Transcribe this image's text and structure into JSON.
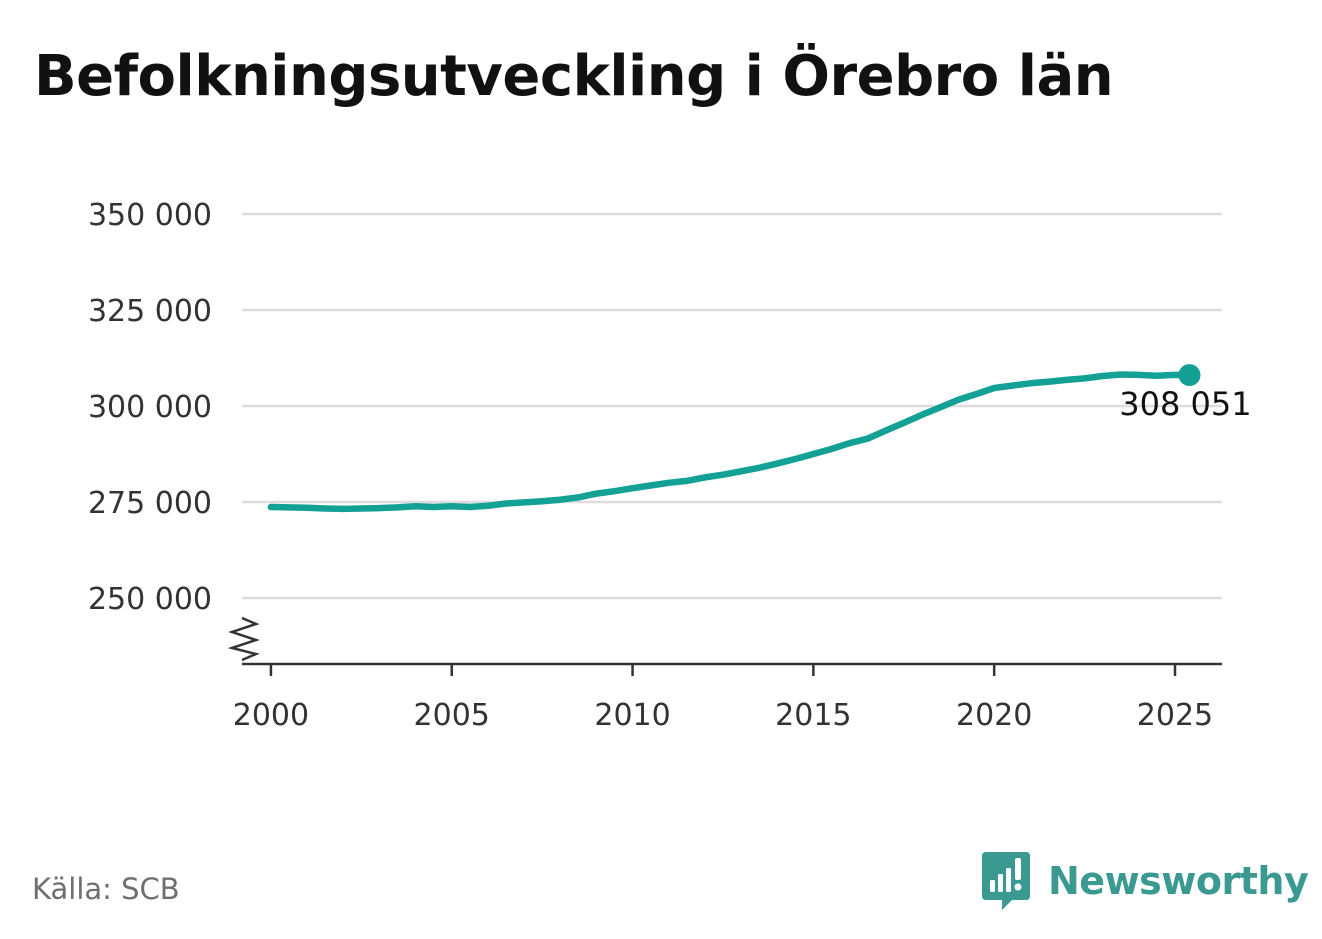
{
  "title": "Befolkningsutveckling i Örebro län",
  "source": "Källa: SCB",
  "brand": {
    "name": "Newsworthy",
    "icon": "newsworthy-logo-icon",
    "color": "#3a9a92"
  },
  "colors": {
    "line": "#14a195",
    "grid": "#dddddd",
    "axis": "#333333",
    "text": "#333333"
  },
  "chart_data": {
    "type": "line",
    "title": "Befolkningsutveckling i Örebro län",
    "xlabel": "",
    "ylabel": "",
    "xlim": [
      1999.2,
      2026.3
    ],
    "ylim": [
      233000,
      350000
    ],
    "y_ticks": [
      250000,
      275000,
      300000,
      325000,
      350000
    ],
    "y_tick_labels": [
      "250 000",
      "275 000",
      "300 000",
      "325 000",
      "350 000"
    ],
    "x_ticks": [
      2000,
      2005,
      2010,
      2015,
      2020,
      2025
    ],
    "x_tick_labels": [
      "2000",
      "2005",
      "2010",
      "2015",
      "2020",
      "2025"
    ],
    "y_axis_break": true,
    "grid": true,
    "legend": "none",
    "series": [
      {
        "x": [
          2000.0,
          2000.5,
          2001.0,
          2001.5,
          2002.0,
          2002.5,
          2003.0,
          2003.5,
          2004.0,
          2004.5,
          2005.0,
          2005.5,
          2006.0,
          2006.5,
          2007.0,
          2007.5,
          2008.0,
          2008.5,
          2009.0,
          2009.5,
          2010.0,
          2010.5,
          2011.0,
          2011.5,
          2012.0,
          2012.5,
          2013.0,
          2013.5,
          2014.0,
          2014.5,
          2015.0,
          2015.5,
          2016.0,
          2016.5,
          2017.0,
          2017.5,
          2018.0,
          2018.5,
          2019.0,
          2019.5,
          2020.0,
          2020.5,
          2021.0,
          2021.5,
          2022.0,
          2022.5,
          2023.0,
          2023.5,
          2024.0,
          2024.5,
          2025.0,
          2025.4
        ],
        "values": [
          273700,
          273600,
          273500,
          273300,
          273200,
          273300,
          273400,
          273600,
          273900,
          273700,
          273900,
          273700,
          274000,
          274600,
          274900,
          275200,
          275600,
          276200,
          277200,
          277800,
          278600,
          279300,
          280000,
          280500,
          281400,
          282100,
          283000,
          283900,
          285000,
          286200,
          287500,
          288800,
          290300,
          291500,
          293600,
          295600,
          297700,
          299600,
          301600,
          303100,
          304700,
          305300,
          305900,
          306300,
          306800,
          307200,
          307800,
          308200,
          308100,
          307900,
          308100,
          308051
        ]
      }
    ],
    "annotations": [
      {
        "x": 2025.4,
        "y": 308051,
        "label": "308 051"
      }
    ]
  }
}
